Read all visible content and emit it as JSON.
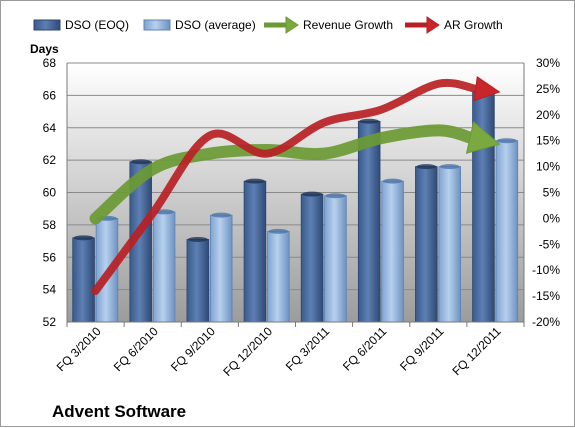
{
  "chart_data": {
    "type": "bar",
    "title": "Advent Software",
    "y_left_label": "Days",
    "categories": [
      "FQ 3/2010",
      "FQ 6/2010",
      "FQ 9/2010",
      "FQ 12/2010",
      "FQ 3/2011",
      "FQ 6/2011",
      "FQ 9/2011",
      "FQ 12/2011"
    ],
    "bar_series": [
      {
        "name": "DSO (EOQ)",
        "color": "#4f6fa1",
        "values": [
          57.2,
          61.9,
          57.1,
          60.7,
          59.9,
          64.4,
          61.6,
          66.2
        ]
      },
      {
        "name": "DSO (average)",
        "color": "#9bbbe0",
        "values": [
          58.4,
          58.8,
          58.6,
          57.6,
          59.8,
          60.7,
          61.6,
          63.2
        ]
      }
    ],
    "line_series": [
      {
        "name": "Revenue Growth",
        "color": "#77a33d",
        "axis": "right",
        "values": [
          0.0,
          9.5,
          12.5,
          13.2,
          12.5,
          15.5,
          17.0,
          14.5
        ]
      },
      {
        "name": "AR Growth",
        "color": "#c8262b",
        "axis": "right",
        "values": [
          -14.0,
          1.0,
          16.0,
          12.5,
          18.5,
          21.0,
          26.0,
          24.5
        ]
      }
    ],
    "y_left": {
      "min": 52,
      "max": 68,
      "step": 2,
      "ticks": [
        "52",
        "54",
        "56",
        "58",
        "60",
        "62",
        "64",
        "66",
        "68"
      ]
    },
    "y_right": {
      "min": -20,
      "max": 30,
      "step": 5,
      "ticks": [
        "-20%",
        "-15%",
        "-10%",
        "-5%",
        "0%",
        "5%",
        "10%",
        "15%",
        "20%",
        "25%",
        "30%"
      ]
    },
    "grid": true,
    "legend_position": "top"
  },
  "colors": {
    "plot_background_top": "#ffffff",
    "plot_background_bottom": "#9c9c9c"
  }
}
